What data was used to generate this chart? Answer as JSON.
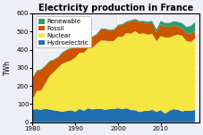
{
  "title": "Electricity production in France",
  "ylabel": "TWh",
  "xlim": [
    1980,
    2019
  ],
  "ylim": [
    0,
    600
  ],
  "yticks": [
    0,
    100,
    200,
    300,
    400,
    500,
    600
  ],
  "years": [
    1980,
    1981,
    1982,
    1983,
    1984,
    1985,
    1986,
    1987,
    1988,
    1989,
    1990,
    1991,
    1992,
    1993,
    1994,
    1995,
    1996,
    1997,
    1998,
    1999,
    2000,
    2001,
    2002,
    2003,
    2004,
    2005,
    2006,
    2007,
    2008,
    2009,
    2010,
    2011,
    2012,
    2013,
    2014,
    2015,
    2016,
    2017,
    2018
  ],
  "hydroelectric": [
    70,
    72,
    69,
    74,
    70,
    65,
    62,
    58,
    62,
    66,
    58,
    73,
    63,
    77,
    70,
    74,
    73,
    69,
    72,
    73,
    77,
    72,
    77,
    67,
    66,
    56,
    62,
    62,
    68,
    57,
    67,
    47,
    63,
    72,
    68,
    60,
    64,
    62,
    68
  ],
  "nuclear": [
    58,
    100,
    105,
    140,
    185,
    213,
    240,
    265,
    270,
    275,
    298,
    310,
    320,
    330,
    340,
    358,
    377,
    380,
    375,
    375,
    394,
    398,
    415,
    420,
    436,
    430,
    428,
    420,
    420,
    390,
    408,
    420,
    404,
    404,
    415,
    417,
    384,
    380,
    393
  ],
  "fossil": [
    115,
    110,
    115,
    95,
    80,
    65,
    55,
    60,
    65,
    65,
    60,
    55,
    60,
    55,
    58,
    50,
    62,
    62,
    58,
    58,
    60,
    65,
    58,
    68,
    60,
    64,
    60,
    62,
    58,
    50,
    65,
    60,
    58,
    56,
    44,
    40,
    42,
    46,
    40
  ],
  "renewable": [
    3,
    3,
    3,
    3,
    3,
    3,
    3,
    3,
    3,
    3,
    3,
    3,
    3,
    4,
    4,
    4,
    4,
    5,
    5,
    5,
    6,
    6,
    6,
    7,
    7,
    8,
    8,
    10,
    12,
    14,
    18,
    20,
    22,
    24,
    26,
    29,
    35,
    42,
    50
  ],
  "colors": {
    "hydroelectric": "#2070b0",
    "nuclear": "#f5e642",
    "fossil": "#cc5500",
    "renewable": "#2a9e6e"
  },
  "background_color": "#eeeef5",
  "grid_color": "#ffffff",
  "title_fontsize": 7,
  "label_fontsize": 5.5,
  "tick_fontsize": 5,
  "legend_fontsize": 5
}
